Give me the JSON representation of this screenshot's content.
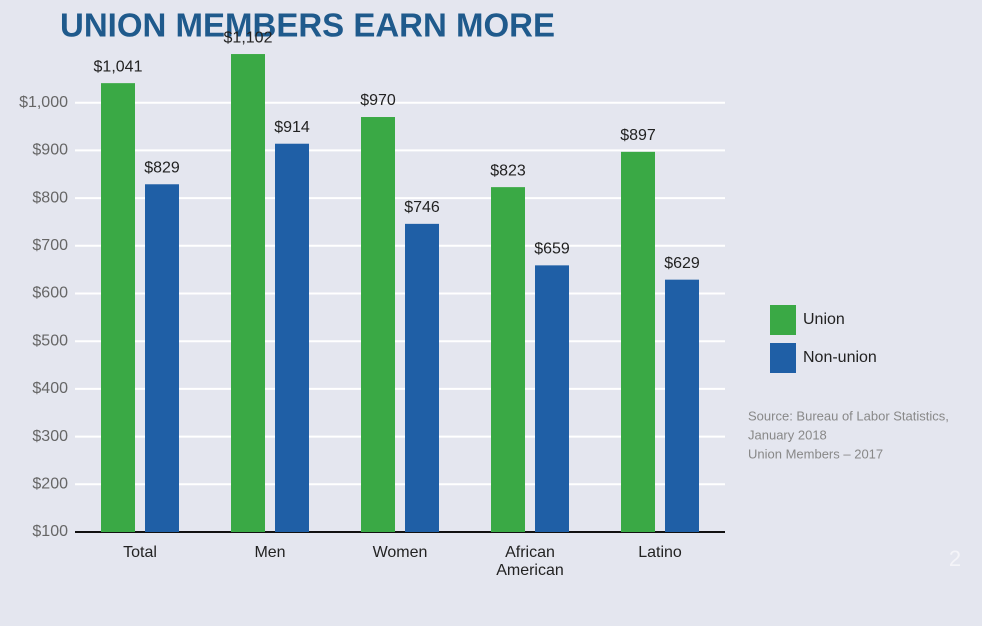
{
  "chart_data": {
    "type": "bar",
    "title": "UNION MEMBERS EARN MORE",
    "categories": [
      "Total",
      "Men",
      "Women",
      "African American",
      "Latino"
    ],
    "series": [
      {
        "name": "Union",
        "color": "#3aa945",
        "values": [
          1041,
          1102,
          970,
          823,
          897
        ],
        "value_labels": [
          "$1,041",
          "$1,102",
          "$970",
          "$823",
          "$897"
        ]
      },
      {
        "name": "Non-union",
        "color": "#1f5fa6",
        "values": [
          829,
          914,
          746,
          659,
          629
        ],
        "value_labels": [
          "$829",
          "$914",
          "$746",
          "$659",
          "$629"
        ]
      }
    ],
    "ylim": [
      100,
      1100
    ],
    "yticks": [
      {
        "value": 100,
        "label": "$100"
      },
      {
        "value": 200,
        "label": "$200"
      },
      {
        "value": 300,
        "label": "$300"
      },
      {
        "value": 400,
        "label": "$400"
      },
      {
        "value": 500,
        "label": "$500"
      },
      {
        "value": 600,
        "label": "$600"
      },
      {
        "value": 700,
        "label": "$700"
      },
      {
        "value": 800,
        "label": "$800"
      },
      {
        "value": 900,
        "label": "$900"
      },
      {
        "value": 1000,
        "label": "$1,000"
      }
    ],
    "grid": true,
    "legend": "right",
    "source": [
      "Source: Bureau of Labor Statistics,",
      "January 2018",
      "Union Members – 2017"
    ],
    "page_number": "2"
  }
}
